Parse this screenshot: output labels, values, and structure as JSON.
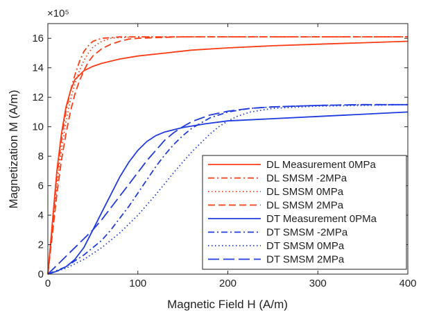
{
  "chart_data": {
    "type": "line",
    "title": "",
    "xlabel": "Magnetic Field H (A/m)",
    "ylabel": "Magnetization M (A/m)",
    "y_multiplier_label": "×10⁵",
    "xlim": [
      0,
      400
    ],
    "ylim": [
      0,
      17
    ],
    "y_scale_factor": 100000,
    "xticks": [
      0,
      100,
      200,
      300,
      400
    ],
    "yticks": [
      0,
      2,
      4,
      6,
      8,
      10,
      12,
      14,
      16
    ],
    "grid": false,
    "legend_position": "bottom-right",
    "series": [
      {
        "name": "DL Measurement 0MPa",
        "color": "#ff3b14",
        "dash": "solid",
        "x": [
          0,
          5,
          10,
          15,
          20,
          25,
          30,
          40,
          50,
          60,
          80,
          100,
          130,
          160,
          200,
          250,
          300,
          350,
          400
        ],
        "y": [
          0,
          3.5,
          7.0,
          9.5,
          11.3,
          12.4,
          13.2,
          13.8,
          14.1,
          14.3,
          14.6,
          14.8,
          15.0,
          15.2,
          15.35,
          15.5,
          15.6,
          15.7,
          15.8
        ]
      },
      {
        "name": "DL SMSM -2MPa",
        "color": "#ff3b14",
        "dash": "dashdot",
        "x": [
          0,
          5,
          10,
          15,
          20,
          25,
          30,
          35,
          40,
          45,
          50,
          60,
          80,
          100,
          200,
          300,
          400
        ],
        "y": [
          0,
          3.3,
          6.6,
          9.1,
          11.0,
          12.4,
          13.5,
          14.4,
          15.1,
          15.5,
          15.8,
          16.0,
          16.1,
          16.1,
          16.1,
          16.1,
          16.1
        ]
      },
      {
        "name": "DL SMSM 0MPa",
        "color": "#ff3b14",
        "dash": "dotted",
        "x": [
          0,
          5,
          10,
          15,
          20,
          25,
          30,
          35,
          40,
          45,
          50,
          60,
          70,
          80,
          100,
          200,
          300,
          400
        ],
        "y": [
          0,
          3.0,
          6.0,
          8.4,
          10.3,
          11.8,
          12.9,
          13.8,
          14.5,
          15.0,
          15.4,
          15.8,
          16.0,
          16.05,
          16.1,
          16.1,
          16.1,
          16.1
        ]
      },
      {
        "name": "DL SMSM 2MPa",
        "color": "#ff3b14",
        "dash": "dashed",
        "x": [
          0,
          5,
          10,
          15,
          20,
          25,
          30,
          35,
          40,
          45,
          50,
          60,
          70,
          80,
          90,
          100,
          120,
          150,
          200,
          300,
          400
        ],
        "y": [
          0,
          2.7,
          5.4,
          7.7,
          9.5,
          11.0,
          12.2,
          13.1,
          13.8,
          14.4,
          14.8,
          15.3,
          15.6,
          15.8,
          15.95,
          16.0,
          16.05,
          16.1,
          16.1,
          16.1,
          16.1
        ]
      },
      {
        "name": "DT Measurement 0PMa",
        "color": "#1f3be0",
        "dash": "solid",
        "x": [
          0,
          10,
          20,
          30,
          40,
          50,
          60,
          70,
          80,
          90,
          100,
          110,
          120,
          130,
          150,
          175,
          200,
          250,
          300,
          350,
          400
        ],
        "y": [
          0,
          0.2,
          0.5,
          1.0,
          1.8,
          3.0,
          4.2,
          5.4,
          6.6,
          7.6,
          8.4,
          9.0,
          9.4,
          9.65,
          9.95,
          10.2,
          10.4,
          10.55,
          10.7,
          10.85,
          11.0
        ]
      },
      {
        "name": "DT SMSM -2MPa",
        "color": "#1f3be0",
        "dash": "dashdot",
        "x": [
          0,
          20,
          40,
          60,
          70,
          80,
          90,
          100,
          110,
          120,
          130,
          140,
          150,
          160,
          180,
          200,
          225,
          250,
          300,
          350,
          400
        ],
        "y": [
          0,
          0.5,
          1.3,
          2.3,
          3.0,
          3.8,
          4.6,
          5.5,
          6.4,
          7.3,
          8.1,
          8.8,
          9.4,
          9.9,
          10.6,
          11.0,
          11.25,
          11.35,
          11.45,
          11.5,
          11.5
        ]
      },
      {
        "name": "DT SMSM 0MPa",
        "color": "#1f3be0",
        "dash": "dotted",
        "x": [
          0,
          20,
          40,
          60,
          80,
          100,
          120,
          140,
          160,
          170,
          180,
          190,
          200,
          210,
          225,
          250,
          300,
          350,
          400
        ],
        "y": [
          0,
          0.4,
          1.0,
          1.8,
          2.8,
          4.0,
          5.4,
          6.9,
          8.3,
          8.9,
          9.5,
          10.0,
          10.4,
          10.7,
          11.0,
          11.25,
          11.4,
          11.45,
          11.5
        ]
      },
      {
        "name": "DT SMSM 2MPa",
        "color": "#1f3be0",
        "dash": "longdash",
        "x": [
          0,
          10,
          20,
          30,
          40,
          50,
          60,
          70,
          80,
          90,
          100,
          110,
          120,
          130,
          140,
          150,
          160,
          180,
          200,
          225,
          250,
          300,
          350,
          400
        ],
        "y": [
          0,
          0.6,
          1.2,
          1.8,
          2.4,
          3.0,
          3.7,
          4.5,
          5.3,
          6.1,
          6.9,
          7.7,
          8.4,
          9.1,
          9.6,
          10.0,
          10.35,
          10.8,
          11.05,
          11.25,
          11.35,
          11.45,
          11.5,
          11.5
        ]
      }
    ]
  }
}
